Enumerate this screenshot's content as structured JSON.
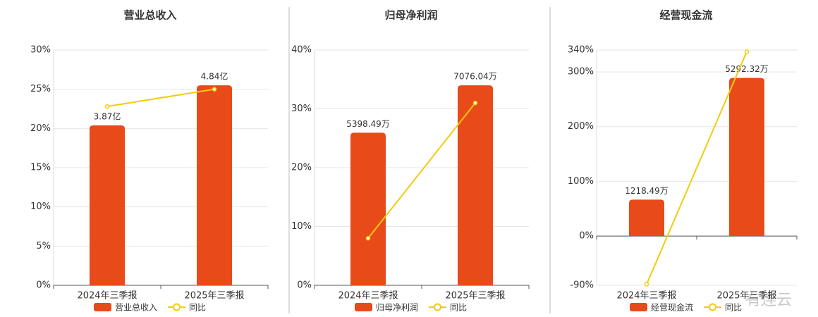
{
  "chart_data": [
    {
      "type": "bar_line",
      "title": "营业总收入",
      "categories": [
        "2024年三季报",
        "2025年三季报"
      ],
      "series": [
        {
          "name": "营业总收入",
          "color": "#e84a1a",
          "type": "bar",
          "values": [
            3.87,
            4.84
          ],
          "value_labels": [
            "3.87亿",
            "4.84亿"
          ]
        },
        {
          "name": "同比",
          "color": "#f2cc0c",
          "type": "line",
          "values": [
            22.8,
            25
          ]
        }
      ],
      "ylim": [
        0,
        30
      ],
      "yticks": [
        {
          "value": 0,
          "label": "0%"
        },
        {
          "value": 5,
          "label": "5%"
        },
        {
          "value": 10,
          "label": "10%"
        },
        {
          "value": 15,
          "label": "15%"
        },
        {
          "value": 20,
          "label": "20%"
        },
        {
          "value": 25,
          "label": "25%"
        },
        {
          "value": 30,
          "label": "30%"
        }
      ],
      "grid": true
    },
    {
      "type": "bar_line",
      "title": "归母净利润",
      "categories": [
        "2024年三季报",
        "2025年三季报"
      ],
      "series": [
        {
          "name": "归母净利润",
          "color": "#e84a1a",
          "type": "bar",
          "values": [
            5398.49,
            7076.04
          ],
          "value_labels": [
            "5398.49万",
            "7076.04万"
          ]
        },
        {
          "name": "同比",
          "color": "#f2cc0c",
          "type": "line",
          "values": [
            8,
            31
          ]
        }
      ],
      "ylim": [
        0,
        40
      ],
      "yticks": [
        {
          "value": 0,
          "label": "0%"
        },
        {
          "value": 10,
          "label": "10%"
        },
        {
          "value": 20,
          "label": "20%"
        },
        {
          "value": 30,
          "label": "30%"
        },
        {
          "value": 40,
          "label": "40%"
        }
      ],
      "grid": true
    },
    {
      "type": "bar_line",
      "title": "经营现金流",
      "categories": [
        "2024年三季报",
        "2025年三季报"
      ],
      "series": [
        {
          "name": "经营现金流",
          "color": "#e84a1a",
          "type": "bar",
          "values": [
            1218.49,
            5292.32
          ],
          "value_labels": [
            "1218.49万",
            "5292.32万"
          ]
        },
        {
          "name": "同比",
          "color": "#f2cc0c",
          "type": "line",
          "values": [
            -88,
            337
          ]
        }
      ],
      "ylim": [
        -90,
        340
      ],
      "yticks": [
        {
          "value": -90,
          "label": "-90%"
        },
        {
          "value": 0,
          "label": "0%"
        },
        {
          "value": 100,
          "label": "100%"
        },
        {
          "value": 200,
          "label": "200%"
        },
        {
          "value": 300,
          "label": "300%"
        },
        {
          "value": 340,
          "label": "340%"
        }
      ],
      "grid": true
    }
  ],
  "watermark": "有连云"
}
